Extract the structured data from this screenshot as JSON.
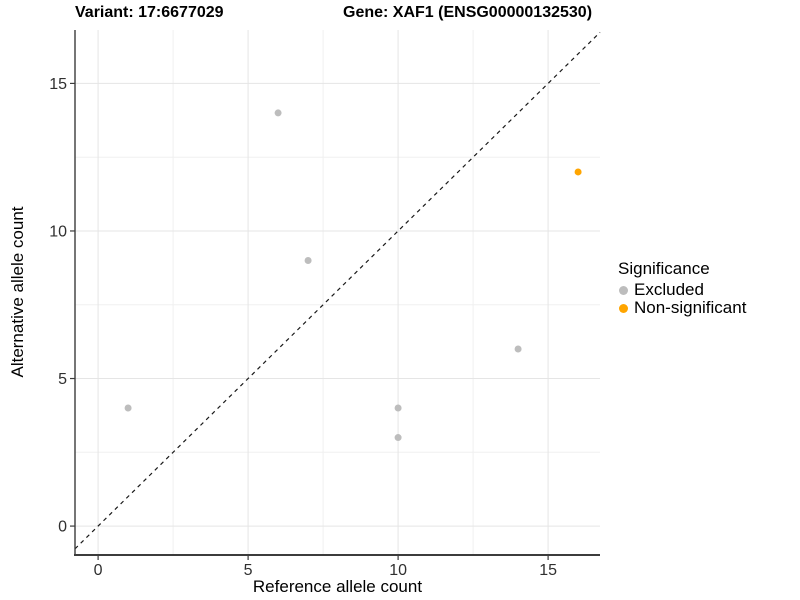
{
  "header": {
    "title_left": "Variant: 17:6677029",
    "title_right": "Gene: XAF1 (ENSG00000132530)"
  },
  "legend": {
    "title": "Significance",
    "items": [
      {
        "label": "Excluded",
        "color": "#bdbdbd"
      },
      {
        "label": "Non-significant",
        "color": "#ffa500"
      }
    ]
  },
  "chart_data": {
    "type": "scatter",
    "title_left": "Variant: 17:6677029",
    "title_right": "Gene: XAF1 (ENSG00000132530)",
    "xlabel": "Reference allele count",
    "ylabel": "Alternative allele count",
    "x_ticks": [
      0,
      5,
      10,
      15
    ],
    "y_ticks": [
      0,
      5,
      10,
      15
    ],
    "xlim": [
      -0.77,
      16.73
    ],
    "ylim": [
      -0.98,
      16.81
    ],
    "grid": "major+minor",
    "legend_position": "right",
    "legend_title": "Significance",
    "identity_line": {
      "equation": "y = x",
      "style": "dashed",
      "color": "#1a1a1a"
    },
    "series": [
      {
        "name": "Excluded",
        "color": "#bdbdbd",
        "points": [
          [
            1,
            4
          ],
          [
            6,
            14
          ],
          [
            7,
            9
          ],
          [
            10,
            3
          ],
          [
            10,
            4
          ],
          [
            14,
            6
          ]
        ]
      },
      {
        "name": "Non-significant",
        "color": "#ffa500",
        "points": [
          [
            16,
            12
          ]
        ]
      }
    ],
    "colors": {
      "grid_major": "#e5e5e5",
      "grid_minor": "#f0f0f0",
      "axis_line": "#3c3c3c",
      "tick_text": "#303030"
    }
  }
}
